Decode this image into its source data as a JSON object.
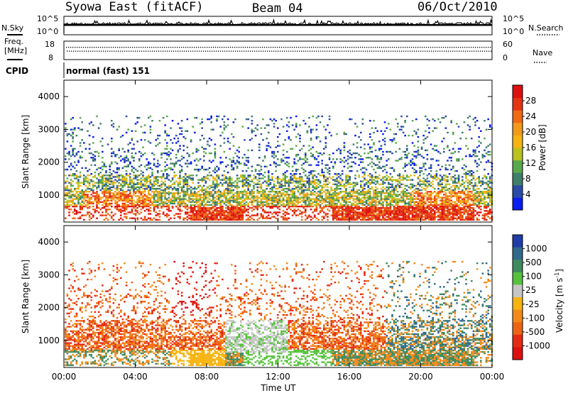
{
  "header": {
    "title": "Syowa East (fitACF)",
    "beam": "Beam 04",
    "date": "06/Oct/2010"
  },
  "noise_panel": {
    "left_label": "N.Sky",
    "right_label": "N.Search",
    "left_top_tick": "10^5",
    "left_bottom_tick": "10^0",
    "right_top_tick": "10^5",
    "right_bottom_tick": "10^0"
  },
  "freq_panel": {
    "left_label_line1": "Freq.",
    "left_label_line2": "[MHz]",
    "right_label": "Nave",
    "left_top_tick": "18",
    "left_bottom_tick": "8",
    "right_top_tick": "60",
    "right_bottom_tick": "0"
  },
  "cpid": {
    "label": "CPID",
    "value": "normal (fast) 151"
  },
  "time_axis": {
    "title": "Time UT",
    "ticks": [
      "00:00",
      "04:00",
      "08:00",
      "12:00",
      "16:00",
      "20:00",
      "00:00"
    ]
  },
  "chart_data": [
    {
      "type": "heatmap",
      "panel": "power",
      "ylabel": "Slant Range [km]",
      "y_ticks": [
        1000,
        2000,
        3000,
        4000
      ],
      "ylim": [
        180,
        4500
      ],
      "x_range_hours": [
        0,
        24
      ],
      "colorbar": {
        "label": "Power [dB]",
        "ticks": [
          "4",
          "8",
          "12",
          "16",
          "20",
          "24",
          "28"
        ],
        "colors": [
          "#0a1cf0",
          "#2a4aa8",
          "#3f7e6a",
          "#5aa84a",
          "#b9c21e",
          "#f4b414",
          "#f29a1a",
          "#ee6a14",
          "#e43414",
          "#dd1010"
        ]
      }
    },
    {
      "type": "heatmap",
      "panel": "velocity",
      "ylabel": "Slant Range [km]",
      "y_ticks": [
        1000,
        2000,
        3000,
        4000
      ],
      "ylim": [
        180,
        4500
      ],
      "x_range_hours": [
        0,
        24
      ],
      "colorbar": {
        "label": "Velocity [m s^-1]",
        "ticks": [
          "1000",
          "500",
          "100",
          "25",
          "-25",
          "-100",
          "-500",
          "-1000"
        ],
        "colors": [
          "#1f3ca8",
          "#2f6a8a",
          "#3e8a5e",
          "#56c23c",
          "#c6c6c6",
          "#f6b410",
          "#f28a1a",
          "#ee6414",
          "#e42a14",
          "#dd1010"
        ]
      }
    }
  ]
}
